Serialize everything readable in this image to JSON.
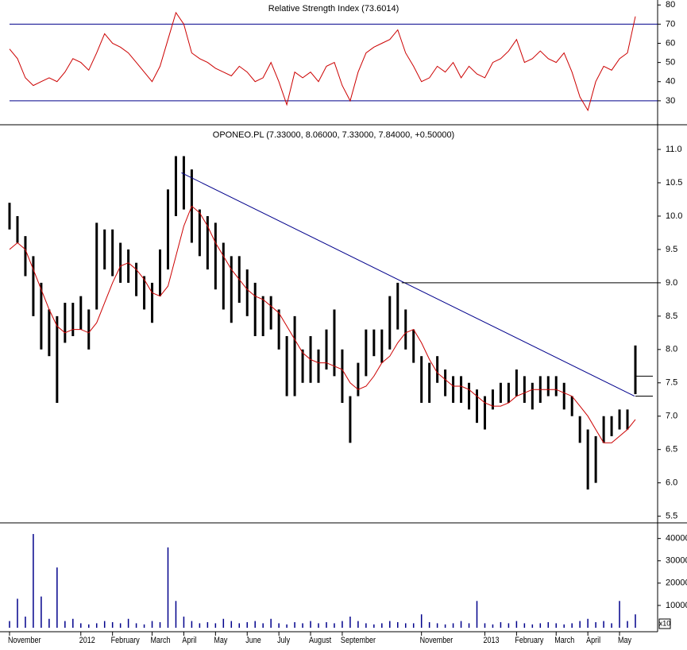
{
  "chart_data": [
    {
      "type": "line",
      "title": "Relative Strength Index (73.6014)",
      "color": "#cc0000",
      "ref_color": "#00008b",
      "reference_lines": [
        70,
        30
      ],
      "ylim": [
        17.5,
        82.6
      ],
      "yticks": [
        80,
        70,
        60,
        50,
        40,
        30
      ],
      "values": [
        57,
        52,
        42,
        38,
        40,
        42,
        40,
        45,
        52,
        50,
        46,
        55,
        65,
        60,
        58,
        55,
        50,
        45,
        40,
        48,
        62,
        76,
        70,
        55,
        52,
        50,
        47,
        45,
        43,
        48,
        45,
        40,
        42,
        50,
        40,
        28,
        45,
        42,
        45,
        40,
        48,
        50,
        38,
        30,
        45,
        55,
        58,
        60,
        62,
        67,
        55,
        48,
        40,
        42,
        48,
        45,
        50,
        42,
        48,
        44,
        42,
        50,
        52,
        56,
        62,
        50,
        52,
        56,
        52,
        50,
        55,
        45,
        32,
        25,
        40,
        48,
        46,
        52,
        55,
        74
      ]
    },
    {
      "type": "hl-bars",
      "title": "OPONEO.PL (7.33000, 8.06000, 7.33000, 7.84000, +0.50000)",
      "color": "#000000",
      "ma_color": "#cc0000",
      "line_color": "#00008b",
      "ylim": [
        5.4,
        11.37
      ],
      "yticks": [
        {
          "value": 11,
          "label": "11.0"
        },
        10.5,
        {
          "value": 10,
          "label": "10.0"
        },
        9.5,
        {
          "value": 9,
          "label": "9.0"
        },
        8.5,
        {
          "value": 8,
          "label": "8.0"
        },
        7.5,
        {
          "value": 7,
          "label": "7.0"
        },
        6.5,
        {
          "value": 6,
          "label": "6.0"
        },
        5.5
      ],
      "high": [
        10.2,
        10.0,
        9.7,
        9.4,
        9.0,
        8.6,
        8.5,
        8.7,
        8.7,
        8.8,
        8.6,
        9.9,
        9.8,
        9.8,
        9.6,
        9.5,
        9.3,
        9.1,
        9.0,
        9.5,
        10.4,
        10.9,
        10.9,
        10.7,
        10.1,
        10.0,
        9.9,
        9.6,
        9.4,
        9.4,
        9.2,
        9.0,
        8.8,
        8.8,
        8.6,
        8.2,
        8.5,
        8.0,
        8.2,
        8.0,
        8.3,
        8.6,
        8.0,
        7.3,
        7.8,
        8.3,
        8.3,
        8.3,
        8.8,
        9.0,
        8.6,
        8.3,
        7.9,
        7.8,
        7.9,
        7.7,
        7.6,
        7.6,
        7.5,
        7.4,
        7.3,
        7.4,
        7.5,
        7.5,
        7.7,
        7.6,
        7.5,
        7.6,
        7.6,
        7.6,
        7.5,
        7.3,
        7.0,
        6.8,
        6.7,
        7.0,
        7.0,
        7.1,
        7.1,
        8.06
      ],
      "low": [
        9.8,
        9.6,
        9.1,
        8.5,
        8.0,
        7.9,
        7.2,
        8.1,
        8.2,
        8.3,
        8.0,
        8.6,
        9.2,
        9.1,
        9.0,
        9.0,
        8.8,
        8.6,
        8.4,
        8.8,
        9.2,
        10.0,
        10.1,
        9.6,
        9.4,
        9.2,
        8.9,
        8.6,
        8.4,
        8.7,
        8.5,
        8.2,
        8.2,
        8.3,
        8.0,
        7.3,
        7.3,
        7.5,
        7.5,
        7.5,
        7.7,
        7.6,
        7.2,
        6.6,
        7.3,
        7.6,
        7.9,
        7.8,
        8.0,
        8.3,
        8.0,
        7.8,
        7.2,
        7.2,
        7.5,
        7.3,
        7.2,
        7.2,
        7.1,
        6.9,
        6.8,
        7.1,
        7.2,
        7.2,
        7.3,
        7.2,
        7.1,
        7.2,
        7.3,
        7.3,
        7.1,
        7.0,
        6.6,
        5.9,
        6.0,
        6.6,
        6.7,
        6.8,
        6.8,
        7.33
      ],
      "moving_average": [
        9.5,
        9.6,
        9.5,
        9.2,
        8.9,
        8.6,
        8.35,
        8.25,
        8.3,
        8.3,
        8.25,
        8.4,
        8.7,
        9.0,
        9.25,
        9.3,
        9.2,
        9.05,
        8.85,
        8.8,
        8.95,
        9.4,
        9.85,
        10.15,
        10.05,
        9.85,
        9.6,
        9.4,
        9.2,
        9.05,
        8.9,
        8.8,
        8.75,
        8.65,
        8.55,
        8.35,
        8.15,
        7.95,
        7.85,
        7.8,
        7.8,
        7.75,
        7.7,
        7.5,
        7.4,
        7.45,
        7.6,
        7.8,
        7.9,
        8.1,
        8.25,
        8.3,
        8.1,
        7.85,
        7.65,
        7.55,
        7.45,
        7.45,
        7.4,
        7.3,
        7.2,
        7.15,
        7.15,
        7.2,
        7.3,
        7.35,
        7.4,
        7.4,
        7.4,
        7.4,
        7.35,
        7.3,
        7.15,
        7.0,
        6.8,
        6.6,
        6.6,
        6.7,
        6.8,
        6.95
      ],
      "trend_line": {
        "x": [
          21.7,
          78.9
        ],
        "y": [
          10.65,
          7.3
        ]
      },
      "horizontal_line": {
        "y": 9.0,
        "x_from": 49.5
      },
      "price_markers": [
        7.6,
        7.3
      ]
    },
    {
      "type": "bar",
      "color": "#00008b",
      "scale_label": "x10",
      "ylim": [
        0,
        47000
      ],
      "yticks": [
        40000,
        30000,
        20000,
        10000
      ],
      "categories": [
        "November",
        null,
        null,
        null,
        null,
        null,
        null,
        null,
        null,
        "2012",
        null,
        null,
        null,
        "February",
        null,
        null,
        null,
        null,
        "March",
        null,
        null,
        null,
        "April",
        null,
        null,
        null,
        "May",
        null,
        null,
        null,
        "June",
        null,
        null,
        null,
        "July",
        null,
        null,
        null,
        "August",
        null,
        null,
        null,
        "September",
        null,
        null,
        null,
        null,
        null,
        null,
        null,
        null,
        null,
        "November",
        null,
        null,
        null,
        null,
        null,
        null,
        null,
        "2013",
        null,
        null,
        null,
        "February",
        null,
        null,
        null,
        null,
        "March",
        null,
        null,
        null,
        "April",
        null,
        null,
        null,
        "May",
        null,
        null
      ],
      "values": [
        3000,
        13000,
        5000,
        42000,
        14000,
        4000,
        27000,
        3000,
        4000,
        2000,
        1500,
        2000,
        3000,
        2500,
        2000,
        4000,
        2000,
        1500,
        3000,
        2500,
        36000,
        12000,
        5000,
        3000,
        2000,
        2500,
        2000,
        4000,
        3000,
        2000,
        2500,
        3000,
        2000,
        4000,
        2000,
        1500,
        2500,
        2000,
        3000,
        2000,
        2500,
        2000,
        3000,
        5000,
        3000,
        2000,
        1500,
        2000,
        3000,
        2500,
        2000,
        2000,
        6000,
        2500,
        2000,
        1500,
        2000,
        3000,
        2000,
        12000,
        2000,
        1500,
        2500,
        2000,
        3000,
        2000,
        1500,
        2000,
        2500,
        2000,
        1500,
        2000,
        3000,
        4000,
        2500,
        3000,
        2000,
        12000,
        3000,
        6000
      ]
    }
  ]
}
